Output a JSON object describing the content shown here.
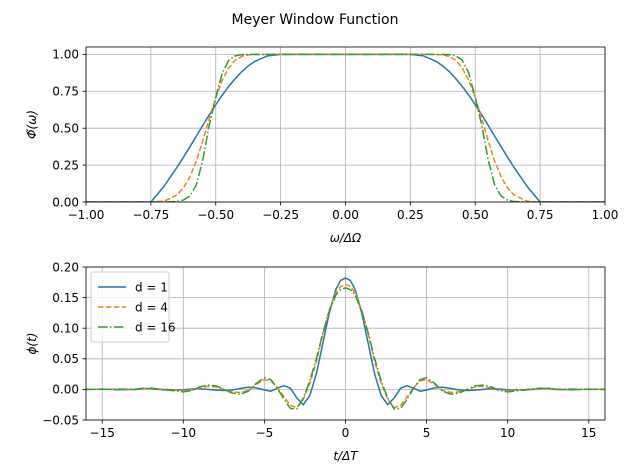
{
  "figure_title": "Meyer Window Function",
  "chart_data": [
    {
      "type": "line",
      "title": "",
      "xlabel": "ω/ΔΩ",
      "ylabel": "Φ̃(ω)",
      "xlim": [
        -1.0,
        1.0
      ],
      "ylim": [
        0.0,
        1.05
      ],
      "xticks": [
        -1.0,
        -0.75,
        -0.5,
        -0.25,
        0.0,
        0.25,
        0.5,
        0.75,
        1.0
      ],
      "xtick_labels": [
        "−1.00",
        "−0.75",
        "−0.50",
        "−0.25",
        "0.00",
        "0.25",
        "0.50",
        "0.75",
        "1.00"
      ],
      "yticks": [
        0.0,
        0.25,
        0.5,
        0.75,
        1.0
      ],
      "ytick_labels": [
        "0.00",
        "0.25",
        "0.50",
        "0.75",
        "1.00"
      ],
      "grid": true,
      "legend": null,
      "x": [
        -1.0,
        -0.9,
        -0.8,
        -0.75,
        -0.7,
        -0.65,
        -0.625,
        -0.6,
        -0.575,
        -0.55,
        -0.525,
        -0.5,
        -0.475,
        -0.45,
        -0.425,
        -0.4,
        -0.375,
        -0.35,
        -0.3,
        -0.25,
        -0.2,
        0.0,
        0.2,
        0.25,
        0.3,
        0.35,
        0.375,
        0.4,
        0.425,
        0.45,
        0.475,
        0.5,
        0.525,
        0.55,
        0.575,
        0.6,
        0.625,
        0.65,
        0.7,
        0.75,
        0.8,
        0.9,
        1.0
      ],
      "series": [
        {
          "values": [
            0.0,
            0.0,
            0.0,
            0.0,
            0.105,
            0.233,
            0.302,
            0.373,
            0.446,
            0.519,
            0.591,
            0.659,
            0.724,
            0.783,
            0.836,
            0.883,
            0.921,
            0.952,
            0.99,
            1.0,
            1.0,
            1.0,
            1.0,
            1.0,
            0.99,
            0.952,
            0.921,
            0.883,
            0.836,
            0.783,
            0.724,
            0.659,
            0.591,
            0.519,
            0.446,
            0.373,
            0.302,
            0.233,
            0.105,
            0.0,
            0.0,
            0.0,
            0.0
          ],
          "color": "#1f77b4",
          "dash": "solid"
        },
        {
          "values": [
            0.0,
            0.0,
            0.0,
            0.0,
            0.005,
            0.047,
            0.094,
            0.169,
            0.277,
            0.414,
            0.565,
            0.707,
            0.824,
            0.908,
            0.96,
            0.986,
            0.996,
            0.999,
            1.0,
            1.0,
            1.0,
            1.0,
            1.0,
            1.0,
            1.0,
            0.999,
            0.996,
            0.986,
            0.96,
            0.908,
            0.824,
            0.707,
            0.565,
            0.414,
            0.277,
            0.169,
            0.094,
            0.047,
            0.005,
            0.0,
            0.0,
            0.0,
            0.0
          ],
          "color": "#ff7f0e",
          "dash": "dashed"
        },
        {
          "values": [
            0.0,
            0.0,
            0.0,
            0.0,
            0.0,
            0.003,
            0.013,
            0.04,
            0.115,
            0.284,
            0.521,
            0.707,
            0.873,
            0.96,
            0.99,
            0.998,
            1.0,
            1.0,
            1.0,
            1.0,
            1.0,
            1.0,
            1.0,
            1.0,
            1.0,
            1.0,
            1.0,
            0.998,
            0.99,
            0.96,
            0.873,
            0.707,
            0.521,
            0.284,
            0.115,
            0.04,
            0.013,
            0.003,
            0.0,
            0.0,
            0.0,
            0.0,
            0.0
          ],
          "color": "#2ca02c",
          "dash": "dashdot"
        }
      ]
    },
    {
      "type": "line",
      "title": "",
      "xlabel": "t/ΔT",
      "ylabel": "ϕ(t)",
      "xlim": [
        -16,
        16
      ],
      "ylim": [
        -0.05,
        0.2
      ],
      "xticks": [
        -15,
        -10,
        -5,
        0,
        5,
        10,
        15
      ],
      "xtick_labels": [
        "−15",
        "−10",
        "−5",
        "0",
        "5",
        "10",
        "15"
      ],
      "yticks": [
        -0.05,
        0.0,
        0.05,
        0.1,
        0.15,
        0.2
      ],
      "ytick_labels": [
        "−0.05",
        "0.00",
        "0.05",
        "0.10",
        "0.15",
        "0.20"
      ],
      "grid": true,
      "legend": "upper left",
      "x": [
        -16,
        -15,
        -14,
        -13,
        -12.5,
        -12,
        -11,
        -10,
        -9.5,
        -9,
        -8.5,
        -8,
        -7.5,
        -7,
        -6.5,
        -6,
        -5.5,
        -5,
        -4.6,
        -4.2,
        -3.8,
        -3.4,
        -3.0,
        -2.6,
        -2.2,
        -1.8,
        -1.4,
        -1.0,
        -0.6,
        -0.3,
        0.0,
        0.3,
        0.6,
        1.0,
        1.4,
        1.8,
        2.2,
        2.6,
        3.0,
        3.4,
        3.8,
        4.2,
        4.6,
        5.0,
        5.5,
        6.0,
        6.5,
        7.0,
        7.5,
        8.0,
        8.5,
        9.0,
        9.5,
        10,
        11,
        12,
        12.5,
        13,
        14,
        15,
        16
      ],
      "series": [
        {
          "name": "d = 1",
          "values": [
            0.0,
            0.0005,
            -0.0005,
            0.0,
            0.0018,
            0.0008,
            -0.001,
            -0.0005,
            0.0005,
            0.001,
            0.0,
            -0.0012,
            -0.0018,
            -0.001,
            0.0015,
            0.0035,
            0.0025,
            -0.001,
            -0.003,
            0.002,
            0.006,
            0.002,
            -0.014,
            -0.025,
            -0.01,
            0.025,
            0.075,
            0.125,
            0.163,
            0.178,
            0.182,
            0.178,
            0.163,
            0.125,
            0.075,
            0.025,
            -0.01,
            -0.025,
            -0.014,
            0.002,
            0.006,
            0.002,
            -0.003,
            -0.001,
            0.0025,
            0.0035,
            0.0015,
            -0.001,
            -0.0018,
            -0.0012,
            0.0,
            0.001,
            0.0005,
            -0.0005,
            -0.001,
            0.0008,
            0.0018,
            0.0,
            -0.0005,
            0.0005,
            0.0
          ],
          "color": "#1f77b4",
          "dash": "solid"
        },
        {
          "name": "d = 4",
          "values": [
            0.0,
            0.0004,
            0.0,
            -0.0004,
            0.0008,
            0.0012,
            0.0,
            -0.002,
            -0.001,
            0.002,
            0.005,
            0.004,
            0.0,
            -0.004,
            -0.005,
            -0.002,
            0.008,
            0.016,
            0.014,
            0.003,
            -0.012,
            -0.026,
            -0.03,
            -0.016,
            0.01,
            0.045,
            0.09,
            0.13,
            0.158,
            0.168,
            0.172,
            0.168,
            0.158,
            0.13,
            0.09,
            0.045,
            0.01,
            -0.016,
            -0.03,
            -0.026,
            -0.012,
            0.003,
            0.014,
            0.016,
            0.008,
            -0.002,
            -0.005,
            -0.004,
            0.0,
            0.004,
            0.005,
            0.002,
            -0.001,
            -0.002,
            0.0,
            0.0012,
            0.0008,
            -0.0004,
            0.0,
            0.0004,
            0.0
          ],
          "color": "#ff7f0e",
          "dash": "dashed"
        },
        {
          "name": "d = 16",
          "values": [
            0.0,
            0.0,
            0.0005,
            0.0,
            0.001,
            0.002,
            -0.001,
            -0.004,
            -0.002,
            0.004,
            0.007,
            0.006,
            0.0,
            -0.006,
            -0.008,
            -0.003,
            0.01,
            0.019,
            0.016,
            0.002,
            -0.016,
            -0.031,
            -0.032,
            -0.014,
            0.014,
            0.05,
            0.092,
            0.128,
            0.154,
            0.163,
            0.166,
            0.163,
            0.154,
            0.128,
            0.092,
            0.05,
            0.014,
            -0.014,
            -0.032,
            -0.031,
            -0.016,
            0.002,
            0.016,
            0.019,
            0.01,
            -0.003,
            -0.008,
            -0.006,
            0.0,
            0.006,
            0.007,
            0.004,
            -0.002,
            -0.004,
            -0.001,
            0.002,
            0.001,
            0.0,
            0.0005,
            0.0,
            0.0
          ],
          "color": "#2ca02c",
          "dash": "dashdot"
        }
      ]
    }
  ]
}
